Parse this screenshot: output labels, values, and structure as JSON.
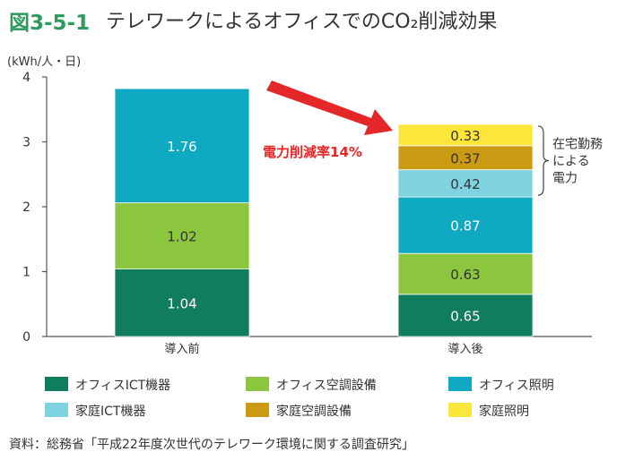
{
  "figure": {
    "number": "図3-5-1",
    "title": "テレワークによるオフィスでのCO₂削減効果"
  },
  "chart_data": {
    "type": "bar",
    "stacked": true,
    "ylabel": "(kWh/人・日)",
    "ylim": [
      0,
      4
    ],
    "yticks": [
      "0",
      "1",
      "2",
      "3",
      "4"
    ],
    "categories": [
      "導入前",
      "導入後"
    ],
    "series": [
      {
        "name": "オフィスICT機器",
        "color": "#0f7d5e",
        "values": [
          1.04,
          0.65
        ],
        "labels": [
          "1.04",
          "0.65"
        ]
      },
      {
        "name": "オフィス空調設備",
        "color": "#8cc63f",
        "values": [
          1.02,
          0.63
        ],
        "labels": [
          "1.02",
          "0.63"
        ]
      },
      {
        "name": "オフィス照明",
        "color": "#0fa9c2",
        "values": [
          1.76,
          0.87
        ],
        "labels": [
          "1.76",
          "0.87"
        ]
      },
      {
        "name": "家庭ICT機器",
        "color": "#7fd2e0",
        "values": [
          null,
          0.42
        ],
        "labels": [
          "",
          "0.42"
        ]
      },
      {
        "name": "家庭空調設備",
        "color": "#c99a12",
        "values": [
          null,
          0.37
        ],
        "labels": [
          "",
          "0.37"
        ]
      },
      {
        "name": "家庭照明",
        "color": "#fde63c",
        "values": [
          null,
          0.33
        ],
        "labels": [
          "",
          "0.33"
        ]
      }
    ],
    "annotations": {
      "reduction": "電力削減率14%",
      "bracket_lines": [
        "在宅勤務",
        "による",
        "電力"
      ]
    },
    "legend": "bottom",
    "grid": false
  },
  "source": "資料：総務省「平成22年度次世代のテレワーク環境に関する調査研究」"
}
